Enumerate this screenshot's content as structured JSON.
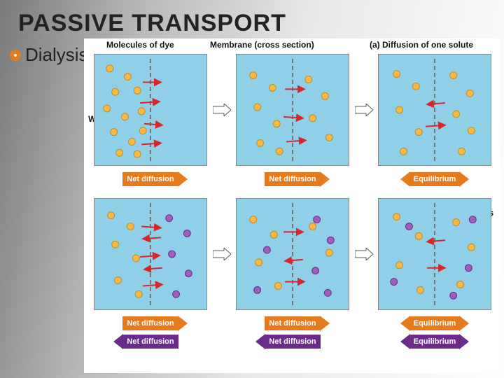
{
  "title": "PASSIVE TRANSPORT",
  "bullet": "Dialysis",
  "labels": {
    "molecules": "Molecules of dye",
    "membrane": "Membrane (cross section)",
    "rowA": "(a) Diffusion of one solute",
    "rowB": "(b) Diffusion of two solutes",
    "water": "WATER"
  },
  "colors": {
    "panel_bg": "#8fd0e8",
    "orange_mol": "#f4ba4a",
    "orange_mol_stroke": "#c98a1a",
    "purple_mol": "#9d5fb8",
    "purple_mol_stroke": "#6b2b8a",
    "motion_arrow": "#d6252b",
    "caption_orange": "#e67a1f",
    "caption_purple": "#6b2b8a",
    "transition_fill": "#ffffff",
    "transition_stroke": "#555555"
  },
  "mol_radius": 5,
  "rowA": {
    "panels": [
      {
        "orange": [
          [
            22,
            20
          ],
          [
            48,
            32
          ],
          [
            30,
            54
          ],
          [
            62,
            52
          ],
          [
            18,
            78
          ],
          [
            44,
            90
          ],
          [
            68,
            82
          ],
          [
            28,
            112
          ],
          [
            54,
            126
          ],
          [
            70,
            110
          ],
          [
            36,
            142
          ],
          [
            62,
            144
          ]
        ],
        "purple": [],
        "arrows": [
          [
            70,
            40,
            96,
            40
          ],
          [
            66,
            70,
            94,
            68
          ],
          [
            72,
            100,
            98,
            102
          ],
          [
            68,
            130,
            96,
            128
          ]
        ]
      },
      {
        "orange": [
          [
            24,
            30
          ],
          [
            52,
            48
          ],
          [
            30,
            76
          ],
          [
            58,
            100
          ],
          [
            34,
            128
          ],
          [
            62,
            140
          ],
          [
            104,
            36
          ],
          [
            128,
            60
          ],
          [
            110,
            92
          ],
          [
            134,
            120
          ]
        ],
        "purple": [],
        "arrows": [
          [
            70,
            50,
            98,
            50
          ],
          [
            68,
            90,
            96,
            92
          ],
          [
            72,
            126,
            100,
            124
          ]
        ]
      },
      {
        "orange": [
          [
            26,
            28
          ],
          [
            54,
            46
          ],
          [
            30,
            80
          ],
          [
            58,
            112
          ],
          [
            36,
            140
          ],
          [
            108,
            30
          ],
          [
            132,
            56
          ],
          [
            112,
            86
          ],
          [
            134,
            110
          ],
          [
            120,
            140
          ]
        ],
        "purple": [],
        "arrows": [
          [
            96,
            70,
            70,
            72
          ],
          [
            68,
            104,
            96,
            102
          ]
        ]
      }
    ],
    "captions": [
      {
        "dir": "right",
        "color": "orange",
        "text": "Net diffusion"
      },
      {
        "dir": "right",
        "color": "orange",
        "text": "Net diffusion"
      },
      {
        "dir": "both",
        "color": "orange",
        "text": "Equilibrium"
      }
    ]
  },
  "rowB": {
    "panels": [
      {
        "orange": [
          [
            24,
            24
          ],
          [
            52,
            40
          ],
          [
            30,
            66
          ],
          [
            60,
            86
          ],
          [
            34,
            118
          ],
          [
            64,
            138
          ]
        ],
        "purple": [
          [
            108,
            28
          ],
          [
            134,
            50
          ],
          [
            112,
            80
          ],
          [
            136,
            108
          ],
          [
            118,
            138
          ]
        ],
        "arrows": [
          [
            68,
            40,
            96,
            42
          ],
          [
            66,
            84,
            94,
            82
          ],
          [
            70,
            126,
            98,
            124
          ],
          [
            96,
            56,
            70,
            58
          ],
          [
            98,
            100,
            72,
            102
          ]
        ]
      },
      {
        "orange": [
          [
            24,
            30
          ],
          [
            54,
            52
          ],
          [
            32,
            92
          ],
          [
            60,
            126
          ],
          [
            110,
            40
          ],
          [
            134,
            78
          ]
        ],
        "purple": [
          [
            116,
            30
          ],
          [
            136,
            60
          ],
          [
            114,
            104
          ],
          [
            132,
            136
          ],
          [
            44,
            74
          ],
          [
            30,
            132
          ]
        ],
        "arrows": [
          [
            68,
            48,
            96,
            48
          ],
          [
            96,
            88,
            70,
            90
          ],
          [
            70,
            120,
            98,
            120
          ]
        ]
      },
      {
        "orange": [
          [
            26,
            26
          ],
          [
            58,
            54
          ],
          [
            30,
            96
          ],
          [
            60,
            132
          ],
          [
            112,
            34
          ],
          [
            134,
            70
          ],
          [
            118,
            124
          ]
        ],
        "purple": [
          [
            44,
            40
          ],
          [
            22,
            120
          ],
          [
            130,
            100
          ],
          [
            108,
            140
          ],
          [
            136,
            30
          ]
        ],
        "arrows": [
          [
            96,
            60,
            70,
            62
          ],
          [
            70,
            100,
            96,
            100
          ]
        ]
      }
    ],
    "captions_top": [
      {
        "dir": "right",
        "color": "orange",
        "text": "Net diffusion"
      },
      {
        "dir": "right",
        "color": "orange",
        "text": "Net diffusion"
      },
      {
        "dir": "both",
        "color": "orange",
        "text": "Equilibrium"
      }
    ],
    "captions_bot": [
      {
        "dir": "left",
        "color": "purple",
        "text": "Net diffusion"
      },
      {
        "dir": "left",
        "color": "purple",
        "text": "Net diffusion"
      },
      {
        "dir": "both",
        "color": "purple",
        "text": "Equilibrium"
      }
    ]
  }
}
